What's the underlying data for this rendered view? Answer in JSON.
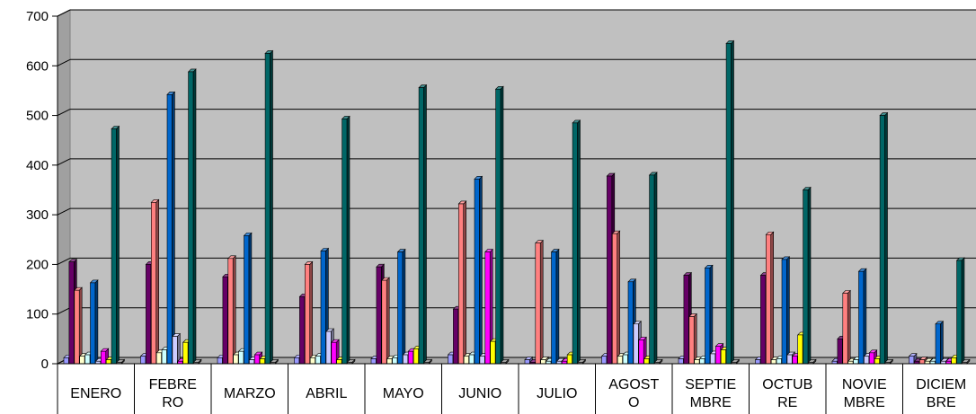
{
  "chart_data": {
    "type": "bar",
    "categories": [
      "ENERO",
      "FEBRERO",
      "MARZO",
      "ABRIL",
      "MAYO",
      "JUNIO",
      "JULIO",
      "AGOSTO",
      "SEPTIEMBRE",
      "OCTUBRE",
      "NOVIEMBRE",
      "DICIEMBRE"
    ],
    "category_lines": [
      [
        "ENERO"
      ],
      [
        "FEBRE",
        "RO"
      ],
      [
        "MARZO"
      ],
      [
        "ABRIL"
      ],
      [
        "MAYO"
      ],
      [
        "JUNIO"
      ],
      [
        "JULIO"
      ],
      [
        "AGOST",
        "O"
      ],
      [
        "SEPTIE",
        "MBRE"
      ],
      [
        "OCTUB",
        "RE"
      ],
      [
        "NOVIE",
        "MBRE"
      ],
      [
        "DICIEM",
        "BRE"
      ]
    ],
    "ylim": [
      0,
      700
    ],
    "yticks": [
      0,
      100,
      200,
      300,
      400,
      500,
      600,
      700
    ],
    "grid": true,
    "legend": "none",
    "plot_background": "#c0c0c0",
    "series": [
      {
        "color": "#9999ff",
        "values": [
          12,
          15,
          12,
          12,
          10,
          18,
          8,
          15,
          10,
          8,
          5,
          15
        ]
      },
      {
        "color": "#660066",
        "values": [
          205,
          200,
          175,
          135,
          195,
          110,
          3,
          378,
          178,
          178,
          50,
          5
        ]
      },
      {
        "color": "#ff8080",
        "values": [
          148,
          325,
          212,
          200,
          168,
          322,
          243,
          262,
          95,
          260,
          142,
          8
        ]
      },
      {
        "color": "#ffffcc",
        "values": [
          15,
          22,
          18,
          12,
          10,
          15,
          8,
          15,
          8,
          8,
          5,
          5
        ]
      },
      {
        "color": "#ccffff",
        "values": [
          18,
          28,
          25,
          15,
          12,
          18,
          5,
          18,
          10,
          10,
          8,
          5
        ]
      },
      {
        "color": "#0066cc",
        "values": [
          163,
          542,
          258,
          227,
          225,
          372,
          225,
          165,
          193,
          210,
          186,
          80
        ]
      },
      {
        "color": "#ccccff",
        "values": [
          5,
          55,
          8,
          65,
          18,
          15,
          5,
          80,
          20,
          18,
          15,
          5
        ]
      },
      {
        "color": "#ff00ff",
        "values": [
          25,
          5,
          18,
          43,
          25,
          225,
          5,
          48,
          35,
          15,
          22,
          5
        ]
      },
      {
        "color": "#ffff00",
        "values": [
          8,
          43,
          10,
          8,
          30,
          45,
          18,
          10,
          28,
          58,
          10,
          12
        ]
      },
      {
        "color": "#006666",
        "values": [
          473,
          588,
          625,
          493,
          556,
          553,
          485,
          380,
          645,
          350,
          500,
          208
        ]
      },
      {
        "color": "#808080",
        "values": [
          3,
          3,
          3,
          3,
          3,
          3,
          3,
          3,
          3,
          3,
          3,
          3
        ]
      }
    ]
  }
}
